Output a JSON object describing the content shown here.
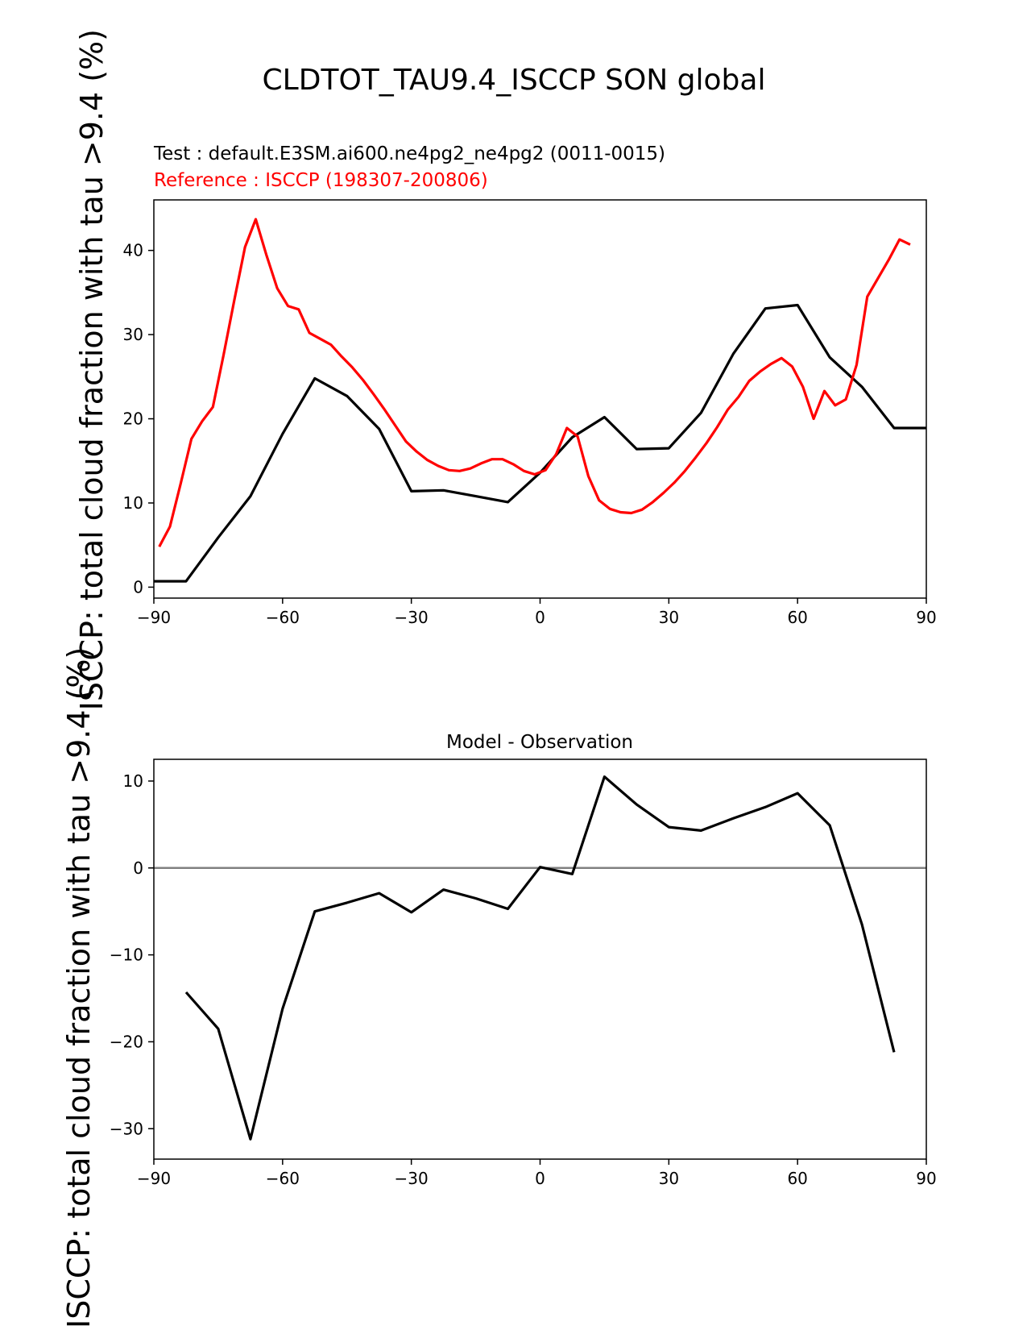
{
  "figure": {
    "title": "CLDTOT_TAU9.4_ISCCP SON global",
    "test_label": "Test : default.E3SM.ai600.ne4pg2_ne4pg2 (0011-0015)",
    "reference_label": "Reference : ISCCP (198307-200806)",
    "ylabel": "ISCCP: total cloud fraction with tau >9.4 (%)"
  },
  "colors": {
    "test": "#000000",
    "reference": "#ff0000",
    "zero_line": "#808080"
  },
  "chart_data": [
    {
      "type": "line",
      "title": "",
      "xlabel": "",
      "ylabel": "ISCCP: total cloud fraction with tau >9.4 (%)",
      "xlim": [
        -90,
        90
      ],
      "ylim": [
        -1.3,
        46
      ],
      "xticks": [
        -90,
        -60,
        -30,
        0,
        30,
        60,
        90
      ],
      "yticks": [
        0,
        10,
        20,
        30,
        40
      ],
      "series": [
        {
          "key": "test",
          "name": "Test : default.E3SM.ai600.ne4pg2_ne4pg2 (0011-0015)",
          "x": [
            -90,
            -82.5,
            -75,
            -67.5,
            -60,
            -52.5,
            -45,
            -37.5,
            -30,
            -22.5,
            -15,
            -7.5,
            0,
            7.5,
            15,
            22.5,
            30,
            37.5,
            45,
            52.5,
            60,
            67.5,
            75,
            82.5,
            90
          ],
          "y": [
            0.7,
            0.7,
            5.9,
            10.8,
            18.2,
            24.8,
            22.7,
            18.8,
            11.4,
            11.5,
            10.8,
            10.1,
            13.6,
            17.8,
            20.2,
            16.4,
            16.5,
            20.7,
            27.7,
            33.1,
            33.5,
            27.3,
            23.8,
            18.9,
            18.9
          ]
        },
        {
          "key": "reference",
          "name": "Reference : ISCCP (198307-200806)",
          "x": [
            -88.75,
            -86.25,
            -83.75,
            -81.25,
            -78.75,
            -76.25,
            -73.75,
            -71.25,
            -68.75,
            -66.25,
            -63.75,
            -61.25,
            -58.75,
            -56.25,
            -53.75,
            -51.25,
            -48.75,
            -46.25,
            -43.75,
            -41.25,
            -38.75,
            -36.25,
            -33.75,
            -31.25,
            -28.75,
            -26.25,
            -23.75,
            -21.25,
            -18.75,
            -16.25,
            -13.75,
            -11.25,
            -8.75,
            -6.25,
            -3.75,
            -1.25,
            1.25,
            3.75,
            6.25,
            8.75,
            11.25,
            13.75,
            16.25,
            18.75,
            21.25,
            23.75,
            26.25,
            28.75,
            31.25,
            33.75,
            36.25,
            38.75,
            41.25,
            43.75,
            46.25,
            48.75,
            51.25,
            53.75,
            56.25,
            58.75,
            61.25,
            63.75,
            66.25,
            68.75,
            71.25,
            73.75,
            76.25,
            78.75,
            81.25,
            83.75,
            86.25
          ],
          "y": [
            4.8,
            7.2,
            12.3,
            17.6,
            19.7,
            21.4,
            27.6,
            34.1,
            40.4,
            43.7,
            39.4,
            35.5,
            33.4,
            33.0,
            30.2,
            29.5,
            28.8,
            27.4,
            26.1,
            24.6,
            22.9,
            21.1,
            19.2,
            17.3,
            16.1,
            15.1,
            14.4,
            13.9,
            13.8,
            14.1,
            14.7,
            15.2,
            15.2,
            14.6,
            13.8,
            13.4,
            13.9,
            15.8,
            18.9,
            17.9,
            13.2,
            10.3,
            9.3,
            8.9,
            8.8,
            9.2,
            10.1,
            11.2,
            12.4,
            13.8,
            15.4,
            17.1,
            19.0,
            21.1,
            22.6,
            24.5,
            25.6,
            26.5,
            27.2,
            26.2,
            23.8,
            20.0,
            23.3,
            21.6,
            22.3,
            26.4,
            34.5,
            36.7,
            38.9,
            41.3,
            40.7
          ]
        }
      ]
    },
    {
      "type": "line",
      "title": "Model - Observation",
      "xlabel": "",
      "ylabel": "ISCCP: total cloud fraction with tau >9.4 (%)",
      "xlim": [
        -90,
        90
      ],
      "ylim": [
        -33.5,
        12.5
      ],
      "xticks": [
        -90,
        -60,
        -30,
        0,
        30,
        60,
        90
      ],
      "yticks": [
        -30,
        -20,
        -10,
        0,
        10
      ],
      "zero_line": 0,
      "series": [
        {
          "key": "test",
          "x": [
            -82.5,
            -75,
            -67.5,
            -60,
            -52.5,
            -45,
            -37.5,
            -30,
            -22.5,
            -15,
            -7.5,
            0,
            7.5,
            15,
            22.5,
            30,
            37.5,
            45,
            52.5,
            60,
            67.5,
            75,
            82.5
          ],
          "y": [
            -14.3,
            -18.5,
            -31.2,
            -16.2,
            -5.0,
            -4.0,
            -2.9,
            -5.1,
            -2.5,
            -3.5,
            -4.7,
            0.1,
            -0.7,
            10.5,
            7.3,
            4.7,
            4.3,
            5.7,
            7.0,
            8.6,
            4.9,
            -6.5,
            -21.2
          ]
        }
      ]
    }
  ]
}
